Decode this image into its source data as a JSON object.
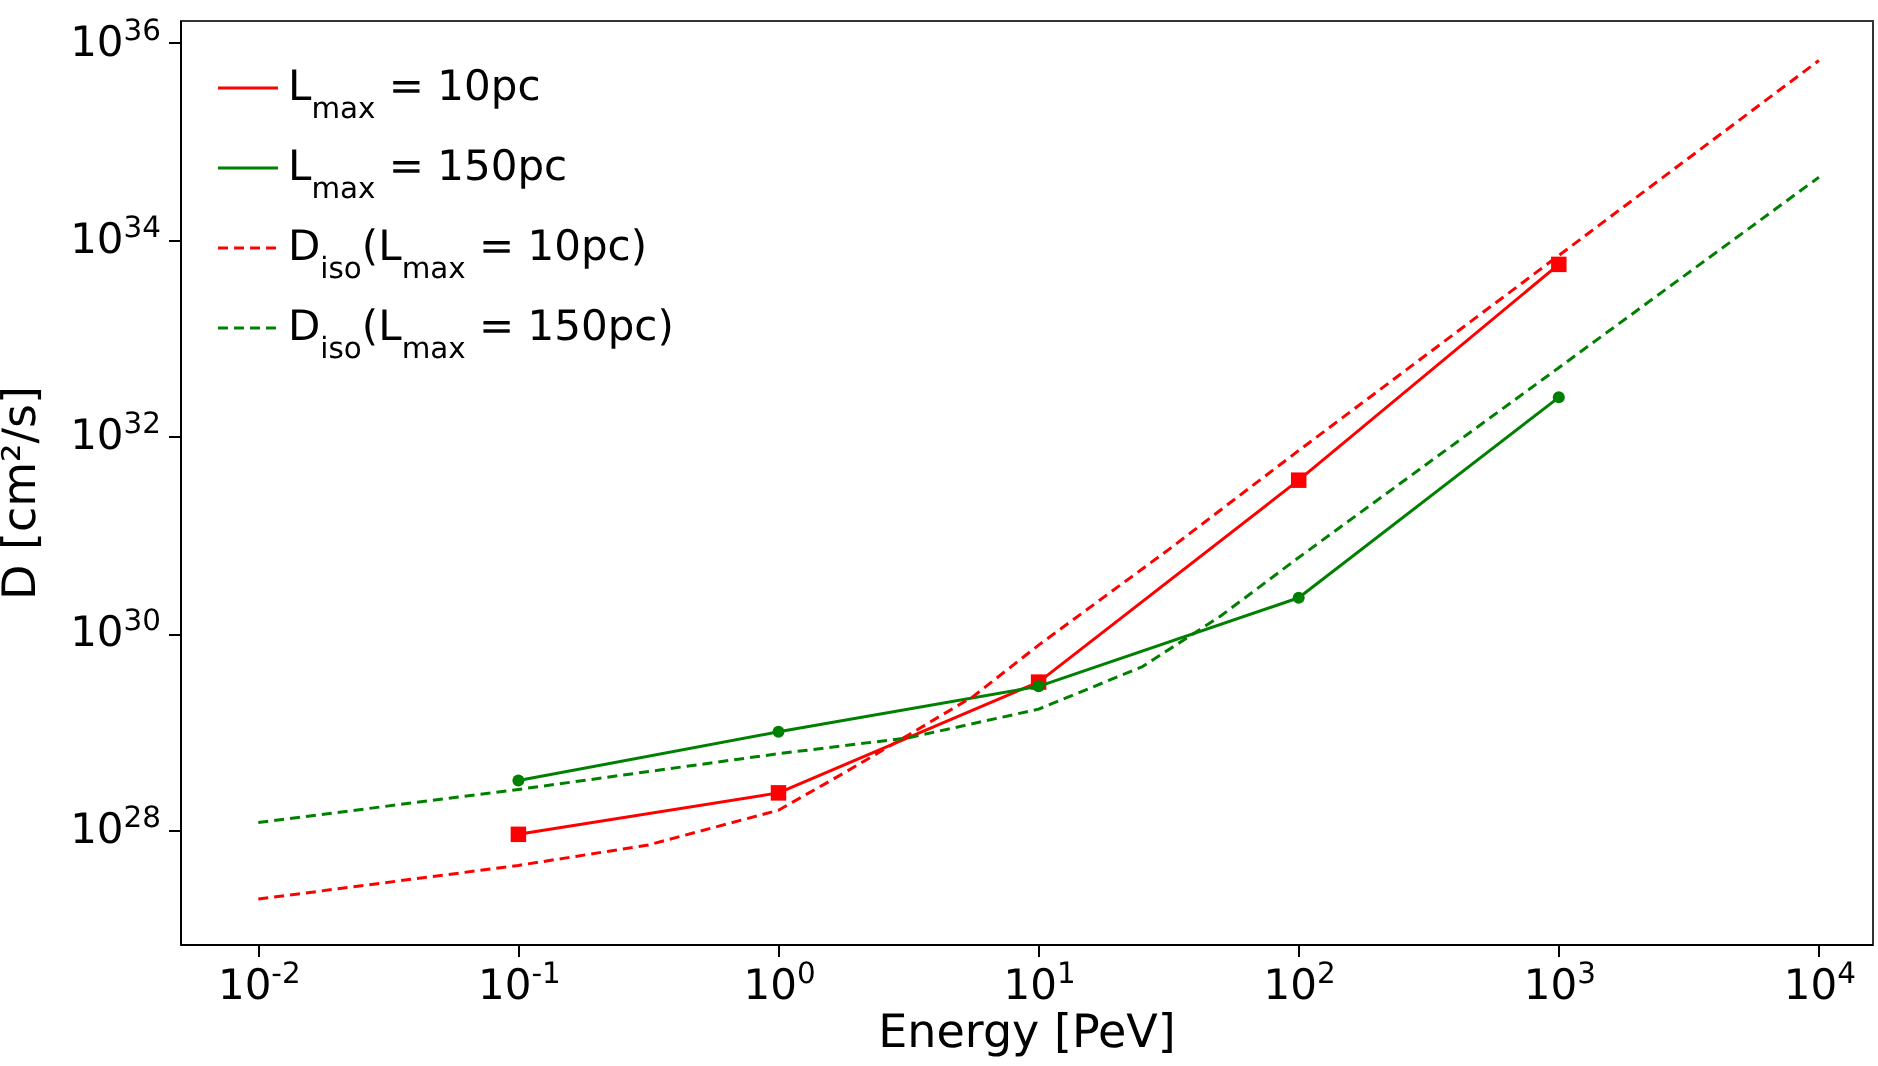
{
  "chart_data": {
    "type": "line",
    "xlabel": "Energy [PeV]",
    "ylabel": "D [cm²/s]",
    "log": "xy",
    "grid": false,
    "legend": "top left",
    "xlim": [
      0.005,
      16000
    ],
    "ylim": [
      7e+26,
      1.7e+36
    ],
    "xticks": [
      {
        "value": 0.01,
        "label": "10$^{-2}$"
      },
      {
        "value": 0.1,
        "label": "10$^{-1}$"
      },
      {
        "value": 1,
        "label": "10$^{0}$"
      },
      {
        "value": 10,
        "label": "10$^{1}$"
      },
      {
        "value": 100,
        "label": "10$^{2}$"
      },
      {
        "value": 1000,
        "label": "10$^{3}$"
      },
      {
        "value": 10000,
        "label": "10$^{4}$"
      }
    ],
    "yticks": [
      {
        "value": 1e+28,
        "label": "10$^{28}$"
      },
      {
        "value": 1e+30,
        "label": "10$^{30}$"
      },
      {
        "value": 1e+32,
        "label": "10$^{32}$"
      },
      {
        "value": 1e+34,
        "label": "10$^{34}$"
      },
      {
        "value": 1e+36,
        "label": "10$^{36}$"
      }
    ],
    "series": [
      {
        "name": "L$_{max}$ = 10pc",
        "color": "#ff0000",
        "marker": "square",
        "line_style": "solid",
        "x": [
          0.1,
          1,
          10,
          100,
          1000
        ],
        "values": [
          9.1e+27,
          2.4e+28,
          3.2e+29,
          3.6e+31,
          5.6e+33
        ]
      },
      {
        "name": "L$_{max}$ = 150pc",
        "color": "#008000",
        "marker": "circle",
        "line_style": "solid",
        "x": [
          0.1,
          1,
          10,
          100,
          1000
        ],
        "values": [
          3.2e+28,
          1e+29,
          2.9e+29,
          2.3e+30,
          2.5e+32
        ]
      },
      {
        "name": "D$_{iso}$(L$_{max}$ = 10pc)",
        "color": "#ff0000",
        "marker": "none",
        "line_style": "dashed",
        "x": [
          0.01,
          0.1,
          0.316,
          1,
          1.78,
          3.16,
          5.62,
          10,
          31.6,
          100,
          1000,
          10000
        ],
        "values": [
          2e+27,
          4.4e+27,
          7.1e+27,
          1.6e+28,
          3.8e+28,
          9.3e+28,
          2.3e+29,
          7.6e+29,
          7.1e+30,
          7.2e+31,
          6.9e+33,
          6.6e+35
        ]
      },
      {
        "name": "D$_{iso}$(L$_{max}$ = 150pc)",
        "color": "#008000",
        "marker": "none",
        "line_style": "dashed",
        "x": [
          0.01,
          0.1,
          1,
          3.16,
          10,
          25.1,
          50.1,
          100,
          1000,
          10000
        ],
        "values": [
          1.2e+28,
          2.6e+28,
          6e+28,
          8.7e+28,
          1.7e+29,
          4.6e+29,
          1.5e+30,
          5.9e+30,
          5e+32,
          4.3e+34
        ]
      }
    ]
  }
}
